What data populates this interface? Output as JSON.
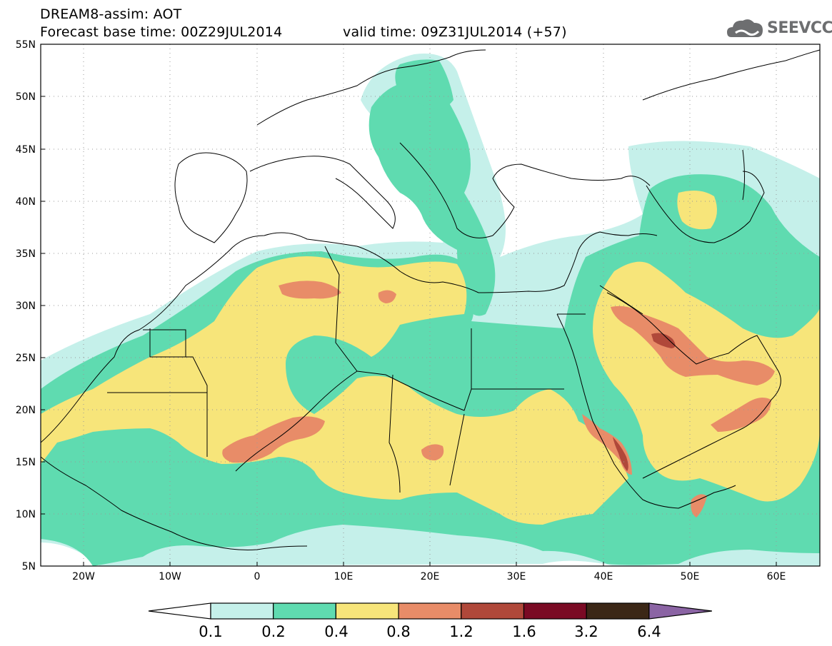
{
  "header": {
    "title_line1": "DREAM8-assim: AOT",
    "title_line2": "Forecast base time: 00Z29JUL2014",
    "valid_time": "valid time: 09Z31JUL2014 (+57)",
    "logo_text": "SEEVCCC",
    "logo_icon": "cloud-icon"
  },
  "map": {
    "lat_labels": [
      "55N",
      "50N",
      "45N",
      "40N",
      "35N",
      "30N",
      "25N",
      "20N",
      "15N",
      "10N",
      "5N"
    ],
    "lon_labels": [
      "20W",
      "10W",
      "0",
      "10E",
      "20E",
      "30E",
      "40E",
      "50E",
      "60E"
    ],
    "lat_range": [
      5,
      55
    ],
    "lon_range": [
      -25,
      65
    ],
    "grid": "dotted"
  },
  "legend": {
    "levels": [
      "0.1",
      "0.2",
      "0.4",
      "0.8",
      "1.2",
      "1.6",
      "3.2",
      "6.4"
    ],
    "colors": [
      "#ffffff",
      "#c5f0ea",
      "#5fdbb0",
      "#f7e57a",
      "#e88c68",
      "#b0483a",
      "#7a0a24",
      "#3b2716",
      "#8b64a4"
    ]
  }
}
